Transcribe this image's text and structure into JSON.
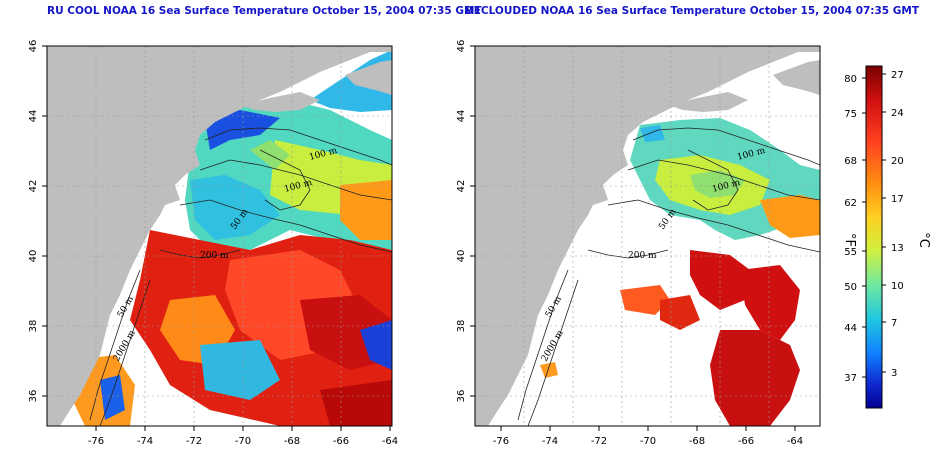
{
  "panels": [
    {
      "title": "RU COOL NOAA 16 Sea Surface Temperature October 15, 2004 07:35 GMT",
      "x_ticks": [
        "-76",
        "-74",
        "-72",
        "-70",
        "-68",
        "-66",
        "-64"
      ],
      "y_ticks": [
        "46",
        "44",
        "42",
        "40",
        "38",
        "36"
      ],
      "contour_labels": [
        "100 m",
        "200 m",
        "50 m",
        "2000 m",
        "50 m",
        "100 m"
      ]
    },
    {
      "title": "DECLOUDED NOAA 16 Sea Surface Temperature October 15, 2004 07:35 GMT",
      "x_ticks": [
        "-76",
        "-74",
        "-72",
        "-70",
        "-68",
        "-66",
        "-64"
      ],
      "y_ticks": [
        "46",
        "44",
        "42",
        "40",
        "38",
        "36"
      ],
      "contour_labels": [
        "100 m",
        "200 m",
        "50 m",
        "2000 m",
        "50 m",
        "100 m"
      ]
    }
  ],
  "colorbar": {
    "fahrenheit_label": "°F",
    "celsius_label": "°C",
    "fahrenheit_ticks": [
      "80",
      "75",
      "68",
      "62",
      "55",
      "50",
      "44",
      "37"
    ],
    "celsius_ticks": [
      "27",
      "24",
      "20",
      "17",
      "13",
      "10",
      "7",
      "3"
    ]
  },
  "colors": {
    "land": "#bebebe",
    "no_data": "#ffffff",
    "title": "#1515c8",
    "scale": [
      "#7a0000",
      "#d01010",
      "#ff4020",
      "#ff8c10",
      "#ffd020",
      "#d0f040",
      "#70e8a0",
      "#20c8e0",
      "#1080ff",
      "#1028d0",
      "#000090"
    ]
  },
  "icons": [
    "land-mass-shape",
    "bathymetry-contour"
  ]
}
